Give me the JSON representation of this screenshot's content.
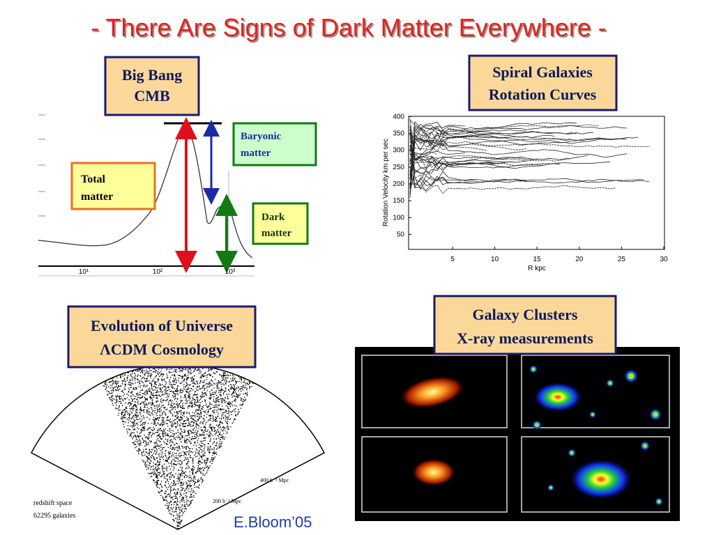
{
  "title": "- There Are Signs of Dark Matter Everywhere -",
  "cmb": {
    "heading": [
      "Big Bang",
      "CMB"
    ],
    "total_matter": [
      "Total",
      "matter"
    ],
    "baryonic_matter": [
      "Baryonic",
      "matter"
    ],
    "dark_matter": [
      "Dark",
      "matter"
    ],
    "x_tick_labels": [
      "10¹",
      "10²",
      "10³"
    ]
  },
  "rotation": {
    "heading": [
      "Spiral Galaxies",
      "Rotation Curves"
    ],
    "y_label": "Rotation Velocity km per sec",
    "x_label": "R  kpc",
    "yticks": [
      400,
      350,
      300,
      250,
      200,
      150,
      100,
      50
    ],
    "xticks": [
      5,
      10,
      15,
      20,
      25,
      30
    ]
  },
  "cosmology": {
    "heading": [
      "Evolution of Universe",
      "ΛCDM Cosmology"
    ],
    "labels": [
      "redshift space",
      "62295 galaxies",
      "400 h⁻¹ Mpc",
      "200 h⁻¹ Mpc"
    ]
  },
  "clusters": {
    "heading": [
      "Galaxy Clusters",
      "X-ray measurements"
    ]
  },
  "footer": "E.Bloom’05"
}
